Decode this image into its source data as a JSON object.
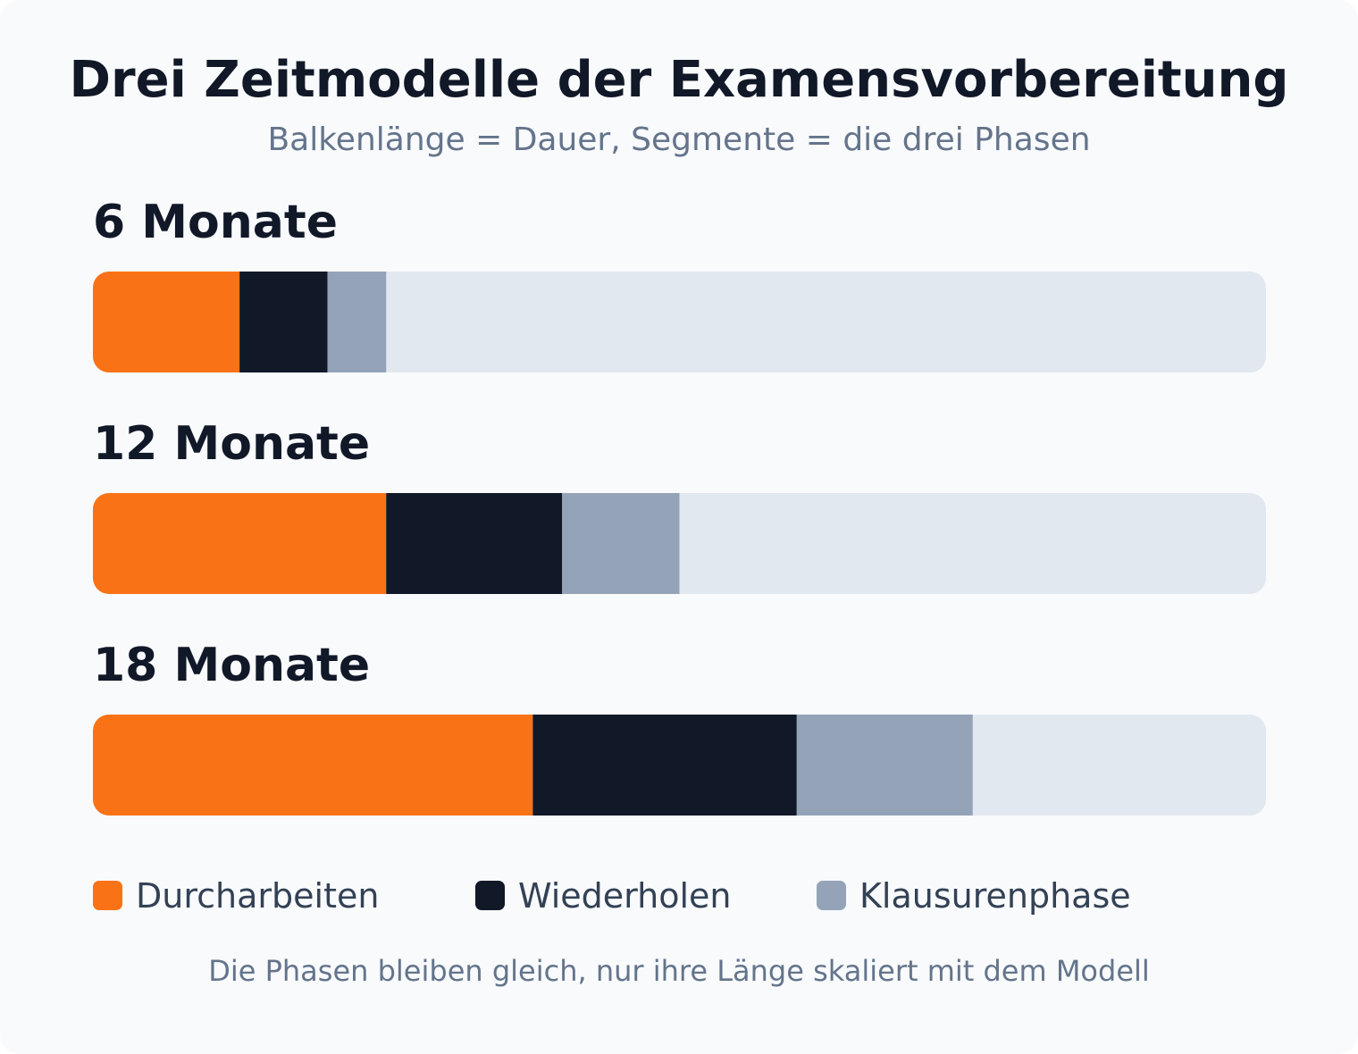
{
  "chart_data": {
    "type": "bar",
    "orientation": "horizontal",
    "stacked": true,
    "title": "Drei Zeitmodelle der Examensvorbereitung",
    "subtitle": "Balkenlänge = Dauer, Segmente = die drei Phasen",
    "xlabel": "",
    "ylabel": "",
    "xlim": [
      0,
      24
    ],
    "unit": "Monate",
    "categories": [
      "6 Monate",
      "12 Monate",
      "18 Monate"
    ],
    "series": [
      {
        "name": "Durcharbeiten",
        "color": "#f97316",
        "values": [
          3,
          6,
          9
        ]
      },
      {
        "name": "Wiederholen",
        "color": "#111827",
        "values": [
          1.8,
          3.6,
          5.4
        ]
      },
      {
        "name": "Klausurenphase",
        "color": "#94a3b8",
        "values": [
          1.2,
          2.4,
          3.6
        ]
      }
    ],
    "track_color": "#e2e8f0",
    "grid": false,
    "legend_position": "bottom",
    "footnote": "Die Phasen bleiben gleich, nur ihre Länge skaliert mit dem Modell"
  }
}
